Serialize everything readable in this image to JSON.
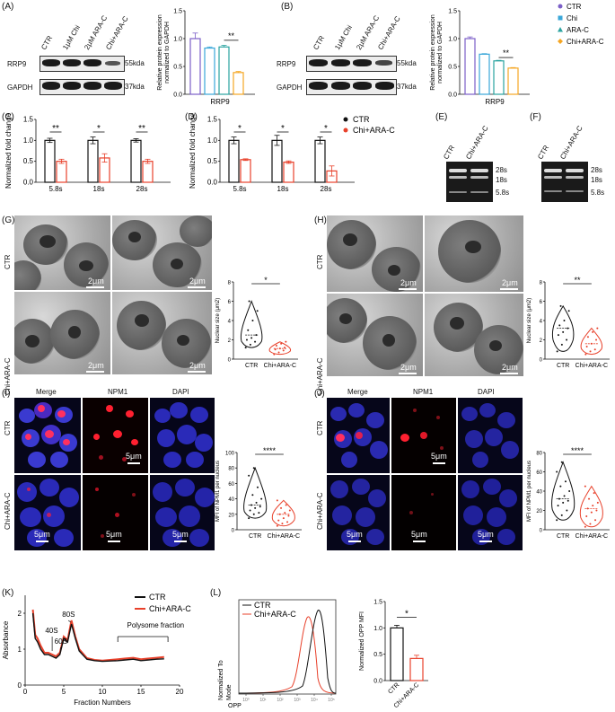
{
  "panels": {
    "A": {
      "label": "(A)",
      "lanes": [
        "CTR",
        "1μM Chi",
        "2μM ARA-C",
        "Chi+ARA-C"
      ],
      "rows": [
        "RRP9",
        "GAPDH"
      ],
      "sizes": [
        "55kda",
        "37kda"
      ]
    },
    "B": {
      "label": "(B)",
      "lanes": [
        "CTR",
        "1μM Chi",
        "2μM ARA-C",
        "Chi+ARA-C"
      ],
      "rows": [
        "RRP9",
        "GAPDH"
      ],
      "sizes": [
        "55kda",
        "37kda"
      ]
    },
    "C": {
      "label": "(C)"
    },
    "D": {
      "label": "(D)"
    },
    "E": {
      "label": "(E)",
      "lanes": [
        "CTR",
        "Chi+ARA-C"
      ],
      "markers": [
        "28s",
        "18s",
        "5.8s"
      ]
    },
    "F": {
      "label": "(F)",
      "lanes": [
        "CTR",
        "Chi+ARA-C"
      ],
      "markers": [
        "28s",
        "18s",
        "5.8s"
      ]
    },
    "G": {
      "label": "(G)",
      "rows": [
        "CTR",
        "Chi+ARA-C"
      ],
      "scale": "2μm"
    },
    "H": {
      "label": "(H)",
      "rows": [
        "CTR",
        "Chi+ARA-C"
      ],
      "scale": "2μm"
    },
    "I": {
      "label": "(I)",
      "cols": [
        "Merge",
        "NPM1",
        "DAPI"
      ],
      "rows": [
        "CTR",
        "Chi+ARA-C"
      ],
      "scale": "5μm"
    },
    "J": {
      "label": "(J)",
      "cols": [
        "Merge",
        "NPM1",
        "DAPI"
      ],
      "rows": [
        "CTR",
        "Chi+ARA-C"
      ],
      "scale": "5μm"
    },
    "K": {
      "label": "(K)",
      "annotations": [
        "40S",
        "60S",
        "80S",
        "Polysome fraction"
      ]
    },
    "L": {
      "label": "(L)",
      "flow_xlabel": "OPP",
      "flow_ylabel_1": "Normalized To",
      "flow_ylabel_2": "Mode",
      "flow_legend": [
        "CTR",
        "Chi+ARA-C"
      ],
      "flow_ticks": [
        "10⁰",
        "10¹",
        "10²",
        "10³",
        "10⁴",
        "10⁵"
      ]
    }
  },
  "chart_data": [
    {
      "id": "A-bar",
      "type": "bar",
      "ylabel_1": "Relative protein expression",
      "ylabel_2": "normalized to GAPDH",
      "xlabel": "RRP9",
      "ylim": [
        0,
        1.5
      ],
      "yticks": [
        "0.0",
        "0.5",
        "1.0",
        "1.5"
      ],
      "values": [
        1.0,
        0.83,
        0.85,
        0.39
      ],
      "errors": [
        0.1,
        0.02,
        0.03,
        0.02
      ],
      "colors": [
        "#7b5fc7",
        "#3aa7d9",
        "#2aa3a0",
        "#f5a623"
      ],
      "sig": {
        "text": "**",
        "from": 2,
        "to": 3,
        "y": 0.97
      }
    },
    {
      "id": "B-bar",
      "type": "bar",
      "ylabel_1": "Relative protein expression",
      "ylabel_2": "normalized to GAPDH",
      "xlabel": "RRP9",
      "ylim": [
        0,
        1.5
      ],
      "yticks": [
        "0.0",
        "0.5",
        "1.0",
        "1.5"
      ],
      "values": [
        1.0,
        0.72,
        0.6,
        0.47
      ],
      "errors": [
        0.03,
        0.01,
        0.01,
        0.01
      ],
      "colors": [
        "#7b5fc7",
        "#3aa7d9",
        "#2aa3a0",
        "#f5a623"
      ],
      "sig": {
        "text": "**",
        "from": 2,
        "to": 3,
        "y": 0.66
      },
      "legend": [
        "CTR",
        "Chi",
        "ARA-C",
        "Chi+ARA-C"
      ]
    },
    {
      "id": "C-bar",
      "type": "bar",
      "ylabel": "Normalized fold change",
      "categories": [
        "5.8s",
        "18s",
        "28s"
      ],
      "ylim": [
        0,
        1.5
      ],
      "yticks": [
        "0.0",
        "0.5",
        "1.0",
        "1.5"
      ],
      "series": [
        {
          "values": [
            1.0,
            1.0,
            1.0
          ],
          "errors": [
            0.05,
            0.08,
            0.04
          ],
          "color": "#111111"
        },
        {
          "values": [
            0.5,
            0.58,
            0.5
          ],
          "errors": [
            0.05,
            0.1,
            0.05
          ],
          "color": "#e8412b"
        }
      ],
      "sig": [
        "**",
        "*",
        "**"
      ]
    },
    {
      "id": "D-bar",
      "type": "bar",
      "ylabel": "Normalized fold change",
      "categories": [
        "5.8s",
        "18s",
        "28s"
      ],
      "ylim": [
        0,
        1.5
      ],
      "yticks": [
        "0.0",
        "0.5",
        "1.0",
        "1.5"
      ],
      "series": [
        {
          "values": [
            1.0,
            1.0,
            1.0
          ],
          "errors": [
            0.08,
            0.12,
            0.08
          ],
          "color": "#111111"
        },
        {
          "values": [
            0.54,
            0.48,
            0.27
          ],
          "errors": [
            0.02,
            0.03,
            0.12
          ],
          "color": "#e8412b"
        }
      ],
      "sig": [
        "*",
        "*",
        "*"
      ],
      "legend": [
        "CTR",
        "Chi+ARA-C"
      ]
    },
    {
      "id": "G-violin",
      "type": "scatter",
      "ylabel": "Nuclear size (μm2)",
      "categories": [
        "CTR",
        "Chi+ARA-C"
      ],
      "ylim": [
        0,
        8
      ],
      "yticks": [
        "0",
        "2",
        "4",
        "6",
        "8"
      ],
      "series": [
        {
          "values": [
            1.2,
            1.5,
            1.8,
            2.0,
            2.2,
            2.5,
            3.0,
            4.0,
            5.0,
            6.0
          ],
          "color": "#111111"
        },
        {
          "values": [
            0.5,
            0.7,
            0.9,
            1.0,
            1.1,
            1.2,
            1.4,
            1.6,
            1.8
          ],
          "color": "#e8412b"
        }
      ],
      "sig": "*"
    },
    {
      "id": "H-violin",
      "type": "scatter",
      "ylabel": "Nuclear size (μm2)",
      "categories": [
        "CTR",
        "Chi+ARA-C"
      ],
      "ylim": [
        0,
        8
      ],
      "yticks": [
        "0",
        "2",
        "4",
        "6",
        "8"
      ],
      "series": [
        {
          "values": [
            0.8,
            1.5,
            2.0,
            2.5,
            2.8,
            3.2,
            3.5,
            4.0,
            5.0,
            5.5
          ],
          "color": "#111111"
        },
        {
          "values": [
            0.5,
            0.8,
            1.0,
            1.3,
            1.6,
            2.0,
            2.3,
            2.8,
            3.2
          ],
          "color": "#e8412b"
        }
      ],
      "sig": "**"
    },
    {
      "id": "I-violin",
      "type": "scatter",
      "ylabel": "MFI of NPM1 per nucleus",
      "categories": [
        "CTR",
        "Chi+ARA-C"
      ],
      "ylim": [
        0,
        100
      ],
      "yticks": [
        "0",
        "20",
        "40",
        "60",
        "80",
        "100"
      ],
      "series": [
        {
          "values": [
            15,
            20,
            22,
            25,
            28,
            30,
            32,
            35,
            40,
            45,
            55,
            70,
            80
          ],
          "color": "#111111"
        },
        {
          "values": [
            5,
            8,
            10,
            12,
            15,
            18,
            20,
            22,
            25,
            28,
            32,
            38
          ],
          "color": "#e8412b"
        }
      ],
      "sig": "****"
    },
    {
      "id": "J-violin",
      "type": "scatter",
      "ylabel": "MFI of NPM1 per nucleus",
      "categories": [
        "CTR",
        "Chi+ARA-C"
      ],
      "ylim": [
        0,
        80
      ],
      "yticks": [
        "0",
        "20",
        "40",
        "60",
        "80"
      ],
      "series": [
        {
          "values": [
            10,
            15,
            20,
            25,
            28,
            30,
            32,
            35,
            40,
            45,
            50,
            60,
            70
          ],
          "color": "#111111"
        },
        {
          "values": [
            3,
            6,
            10,
            14,
            18,
            20,
            22,
            25,
            28,
            32,
            38,
            45
          ],
          "color": "#e8412b"
        }
      ],
      "sig": "****"
    },
    {
      "id": "K-line",
      "type": "line",
      "ylabel": "Absorbance",
      "xlabel": "Fraction Numbers",
      "xlim": [
        0,
        20
      ],
      "xticks": [
        "0",
        "5",
        "10",
        "15",
        "20"
      ],
      "ylim": [
        0,
        2.5
      ],
      "yticks": [
        "0",
        "1",
        "2"
      ],
      "series": [
        {
          "name": "CTR",
          "color": "#111111",
          "x": [
            1,
            1.3,
            1.6,
            2,
            2.5,
            3,
            3.5,
            4,
            4.5,
            5,
            5.5,
            6,
            6.5,
            7,
            8,
            9,
            10,
            11,
            12,
            13,
            14,
            15,
            16,
            17,
            18
          ],
          "y": [
            2.0,
            1.3,
            1.2,
            1.0,
            0.85,
            0.85,
            0.8,
            0.75,
            0.85,
            1.3,
            1.2,
            1.7,
            1.3,
            0.95,
            0.72,
            0.68,
            0.66,
            0.67,
            0.68,
            0.7,
            0.72,
            0.68,
            0.7,
            0.72,
            0.73
          ]
        },
        {
          "name": "Chi+ARA-C",
          "color": "#e8412b",
          "x": [
            1,
            1.3,
            1.6,
            2,
            2.5,
            3,
            3.5,
            4,
            4.5,
            5,
            5.5,
            6,
            6.5,
            7,
            8,
            9,
            10,
            11,
            12,
            13,
            14,
            15,
            16,
            17,
            18
          ],
          "y": [
            2.1,
            1.4,
            1.3,
            1.1,
            0.9,
            0.9,
            0.85,
            0.8,
            0.9,
            1.35,
            1.25,
            1.8,
            1.35,
            1.0,
            0.75,
            0.7,
            0.68,
            0.7,
            0.72,
            0.74,
            0.76,
            0.72,
            0.74,
            0.76,
            0.78
          ]
        }
      ]
    },
    {
      "id": "L-bar",
      "type": "bar",
      "ylabel": "Normalized OPP MFI",
      "categories": [
        "CTR",
        "Chi+ARA-C"
      ],
      "ylim": [
        0,
        1.5
      ],
      "yticks": [
        "0.0",
        "0.5",
        "1.0",
        "1.5"
      ],
      "values": [
        1.0,
        0.42
      ],
      "errors": [
        0.05,
        0.06
      ],
      "colors": [
        "#111111",
        "#e8412b"
      ],
      "sig": "*"
    }
  ]
}
